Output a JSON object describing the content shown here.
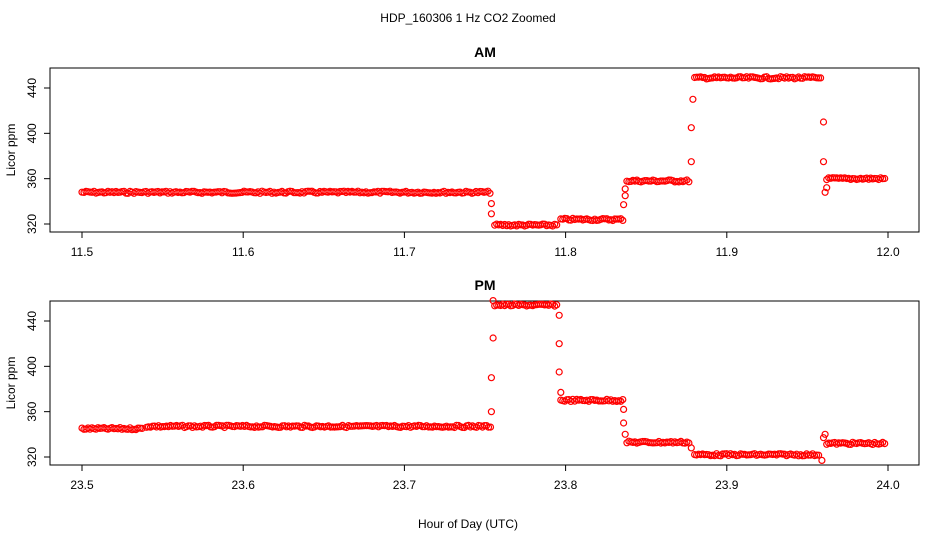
{
  "figure": {
    "title": "HDP_160306  1 Hz CO2 Zoomed",
    "xlabel": "Hour of Day (UTC)"
  },
  "colors": {
    "points": "#ff0000",
    "axes": "#000000"
  },
  "chart_data": [
    {
      "type": "scatter",
      "title": "AM",
      "xlabel": "",
      "ylabel": "Licor ppm",
      "xlim": [
        11.5,
        12.0
      ],
      "ylim": [
        314,
        462
      ],
      "xticks": [
        "11.5",
        "11.6",
        "11.7",
        "11.8",
        "11.9",
        "12.0"
      ],
      "yticks": [
        "320",
        "360",
        "400",
        "440"
      ],
      "grid": false,
      "series": [
        {
          "marker": "open-circle",
          "segments": [
            {
              "x": [
                11.5,
                11.754
              ],
              "y": 348
            },
            {
              "x": [
                11.756,
                11.795
              ],
              "y": 319
            },
            {
              "x": [
                11.797,
                11.836
              ],
              "y": 324
            },
            {
              "x": [
                11.838,
                11.877
              ],
              "y": 358
            },
            {
              "x": [
                11.88,
                11.959
              ],
              "y": 449
            },
            {
              "x": [
                11.962,
                11.999
              ],
              "y": 360
            }
          ],
          "transition_points": [
            {
              "x": 11.754,
              "y": 338
            },
            {
              "x": 11.754,
              "y": 329
            },
            {
              "x": 11.836,
              "y": 337
            },
            {
              "x": 11.837,
              "y": 345
            },
            {
              "x": 11.837,
              "y": 351
            },
            {
              "x": 11.878,
              "y": 375
            },
            {
              "x": 11.878,
              "y": 405
            },
            {
              "x": 11.879,
              "y": 430
            },
            {
              "x": 11.96,
              "y": 410
            },
            {
              "x": 11.96,
              "y": 375
            },
            {
              "x": 11.961,
              "y": 348
            },
            {
              "x": 11.962,
              "y": 352
            }
          ]
        }
      ]
    },
    {
      "type": "scatter",
      "title": "PM",
      "xlabel": "",
      "ylabel": "Licor ppm",
      "xlim": [
        23.5,
        24.0
      ],
      "ylim": [
        314,
        462
      ],
      "xticks": [
        "23.5",
        "23.6",
        "23.7",
        "23.8",
        "23.9",
        "24.0"
      ],
      "yticks": [
        "320",
        "360",
        "400",
        "440"
      ],
      "grid": false,
      "series": [
        {
          "marker": "open-circle",
          "segments": [
            {
              "x": [
                23.5,
                23.538
              ],
              "y": 345
            },
            {
              "x": [
                23.54,
                23.754
              ],
              "y": 347
            },
            {
              "x": [
                23.756,
                23.795
              ],
              "y": 454
            },
            {
              "x": [
                23.797,
                23.836
              ],
              "y": 370
            },
            {
              "x": [
                23.838,
                23.877
              ],
              "y": 333
            },
            {
              "x": [
                23.88,
                23.958
              ],
              "y": 322
            },
            {
              "x": [
                23.962,
                23.999
              ],
              "y": 332
            }
          ],
          "transition_points": [
            {
              "x": 23.754,
              "y": 360
            },
            {
              "x": 23.754,
              "y": 390
            },
            {
              "x": 23.755,
              "y": 425
            },
            {
              "x": 23.755,
              "y": 458
            },
            {
              "x": 23.796,
              "y": 445
            },
            {
              "x": 23.796,
              "y": 420
            },
            {
              "x": 23.796,
              "y": 395
            },
            {
              "x": 23.797,
              "y": 377
            },
            {
              "x": 23.836,
              "y": 362
            },
            {
              "x": 23.836,
              "y": 350
            },
            {
              "x": 23.837,
              "y": 340
            },
            {
              "x": 23.878,
              "y": 328
            },
            {
              "x": 23.959,
              "y": 317
            },
            {
              "x": 23.96,
              "y": 337
            },
            {
              "x": 23.961,
              "y": 340
            }
          ]
        }
      ]
    }
  ]
}
